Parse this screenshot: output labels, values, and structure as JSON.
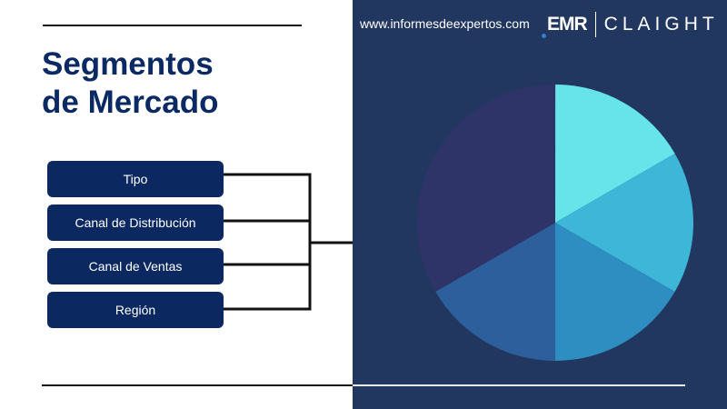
{
  "header": {
    "title_line1": "Segmentos",
    "title_line2": "de Mercado",
    "website": "www.informesdeexpertos.com",
    "logo": {
      "brand1": "EMR",
      "brand2": "CLAIGHT"
    }
  },
  "segments": [
    {
      "label": "Tipo"
    },
    {
      "label": "Canal de Distribución"
    },
    {
      "label": "Canal de Ventas"
    },
    {
      "label": "Región"
    }
  ],
  "colors": {
    "panel": "#22375f",
    "segment_box": "#0b2860",
    "title": "#0b2a63"
  },
  "pie": {
    "slices": [
      {
        "share": 0.1667,
        "color": "#67e3ea"
      },
      {
        "share": 0.1667,
        "color": "#3db6d8"
      },
      {
        "share": 0.1667,
        "color": "#2e8dc1"
      },
      {
        "share": 0.1667,
        "color": "#2c5f9b"
      },
      {
        "share": 0.3333,
        "color": "#2f3468"
      }
    ]
  }
}
